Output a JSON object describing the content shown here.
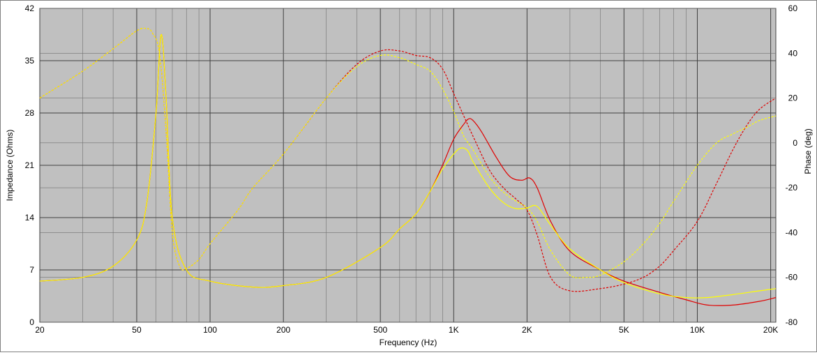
{
  "chart_data": {
    "type": "line",
    "title": "",
    "xlabel": "Frequency (Hz)",
    "ylabel": "Impedance (Ohms)",
    "y2label": "Phase (deg)",
    "x_scale": "log",
    "xlim": [
      20,
      21000
    ],
    "ylim": [
      0,
      42
    ],
    "y2lim": [
      -80,
      60
    ],
    "grid": true,
    "x_ticks": [
      {
        "value": 20,
        "label": "20"
      },
      {
        "value": 50,
        "label": "50"
      },
      {
        "value": 100,
        "label": "100"
      },
      {
        "value": 200,
        "label": "200"
      },
      {
        "value": 500,
        "label": "500"
      },
      {
        "value": 1000,
        "label": "1K"
      },
      {
        "value": 2000,
        "label": "2K"
      },
      {
        "value": 5000,
        "label": "5K"
      },
      {
        "value": 10000,
        "label": "10K"
      },
      {
        "value": 20000,
        "label": "20K"
      }
    ],
    "x_minor_ticks": [
      30,
      40,
      60,
      70,
      80,
      90,
      300,
      400,
      600,
      700,
      800,
      900,
      3000,
      4000,
      6000,
      7000,
      8000,
      9000
    ],
    "y_ticks": [
      0,
      7,
      14,
      21,
      28,
      35,
      42
    ],
    "y2_ticks": [
      -80,
      -60,
      -40,
      -20,
      0,
      20,
      40,
      60
    ],
    "colors": {
      "plot_background": "#c0c0c0",
      "grid_major": "#404040",
      "grid_minor": "#707070",
      "red": "#e00000",
      "yellow": "#ffff00"
    },
    "series": [
      {
        "axis": "left",
        "color": "red",
        "dash": false,
        "x": [
          20,
          30,
          40,
          50,
          55,
          60,
          63,
          66,
          70,
          80,
          100,
          150,
          200,
          300,
          500,
          600,
          700,
          800,
          900,
          1000,
          1100,
          1150,
          1200,
          1300,
          1500,
          1700,
          1900,
          2050,
          2200,
          2500,
          3000,
          4000,
          5000,
          7000,
          9000,
          11000,
          14000,
          18000,
          21000
        ],
        "y": [
          5.5,
          6.0,
          7.5,
          11.0,
          16.0,
          28.0,
          38.5,
          30.0,
          14.0,
          7.0,
          5.5,
          4.7,
          4.9,
          6.0,
          10.0,
          12.5,
          14.5,
          17.5,
          21.0,
          24.5,
          26.5,
          27.2,
          27.0,
          25.5,
          22.0,
          19.5,
          19.0,
          19.3,
          18.0,
          13.5,
          9.5,
          7.0,
          5.5,
          4.0,
          3.0,
          2.3,
          2.3,
          2.8,
          3.3
        ]
      },
      {
        "axis": "left",
        "color": "yellow",
        "dash": false,
        "x": [
          20,
          30,
          40,
          50,
          55,
          60,
          63,
          66,
          70,
          80,
          100,
          150,
          200,
          300,
          500,
          600,
          700,
          800,
          900,
          1000,
          1050,
          1100,
          1150,
          1200,
          1400,
          1600,
          1800,
          2000,
          2200,
          2500,
          3000,
          4000,
          5000,
          7000,
          9000,
          11000,
          14000,
          18000,
          21000
        ],
        "y": [
          5.5,
          6.0,
          7.5,
          11.0,
          16.0,
          28.0,
          38.5,
          30.0,
          14.0,
          7.0,
          5.5,
          4.7,
          4.9,
          6.0,
          10.0,
          12.5,
          14.5,
          17.5,
          20.5,
          22.5,
          23.2,
          23.3,
          22.8,
          21.5,
          18.0,
          16.0,
          15.2,
          15.3,
          15.5,
          13.0,
          9.8,
          7.0,
          5.3,
          3.8,
          3.3,
          3.3,
          3.7,
          4.2,
          4.5
        ]
      },
      {
        "axis": "right",
        "color": "red",
        "dash": true,
        "x": [
          20,
          30,
          40,
          50,
          55,
          58,
          62,
          66,
          70,
          75,
          80,
          90,
          100,
          130,
          150,
          200,
          300,
          400,
          500,
          600,
          700,
          800,
          900,
          1000,
          1100,
          1200,
          1400,
          1600,
          1800,
          2000,
          2200,
          2500,
          3000,
          4000,
          5000,
          6000,
          7000,
          8000,
          10000,
          12000,
          14000,
          16000,
          18000,
          21000
        ],
        "y": [
          20,
          32,
          42,
          50,
          51,
          49,
          40,
          5,
          -40,
          -55,
          -56,
          -52,
          -45,
          -30,
          -20,
          -5,
          20,
          35,
          41,
          41,
          39,
          38,
          33,
          22,
          12,
          3,
          -12,
          -20,
          -25,
          -30,
          -41,
          -60,
          -66,
          -65,
          -63,
          -60,
          -55,
          -48,
          -35,
          -18,
          -3,
          8,
          15,
          20
        ]
      },
      {
        "axis": "right",
        "color": "yellow",
        "dash": true,
        "x": [
          20,
          30,
          40,
          50,
          55,
          58,
          62,
          66,
          70,
          75,
          80,
          90,
          100,
          130,
          150,
          200,
          300,
          400,
          500,
          600,
          700,
          800,
          900,
          1000,
          1100,
          1200,
          1400,
          1600,
          1800,
          2000,
          2200,
          2500,
          3000,
          3500,
          4000,
          5000,
          6000,
          7000,
          8000,
          10000,
          12000,
          14000,
          16000,
          18000,
          21000
        ],
        "y": [
          20,
          32,
          42,
          50,
          51,
          49,
          40,
          5,
          -40,
          -55,
          -56,
          -52,
          -45,
          -30,
          -20,
          -5,
          20,
          34,
          39,
          38,
          35,
          32,
          24,
          14,
          3,
          -3,
          -15,
          -22,
          -26,
          -29,
          -35,
          -48,
          -59,
          -60,
          -59,
          -53,
          -45,
          -36,
          -26,
          -10,
          0,
          4,
          7,
          10,
          12
        ]
      }
    ]
  }
}
